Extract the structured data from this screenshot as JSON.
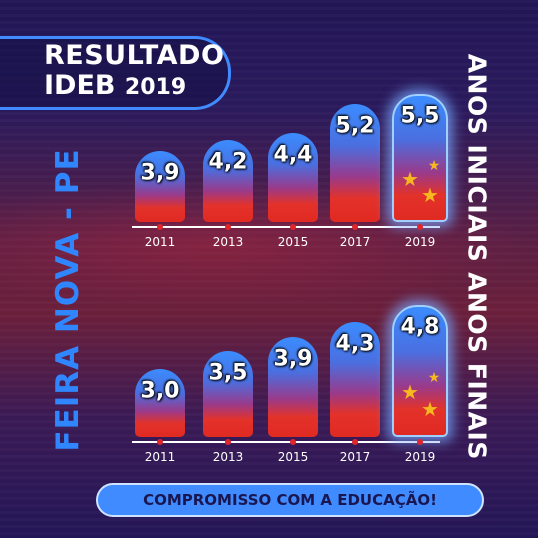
{
  "title": {
    "line1": "RESULTADO",
    "line2": "IDEB",
    "year": "2019"
  },
  "place": "FEIRA NOVA - PE",
  "footer": "COMPROMISSO COM A EDUCAÇÃO!",
  "colors": {
    "accent": "#3f8bff",
    "bar_top": "#3b8cff",
    "bar_bottom": "#e02a22",
    "star": "#f6b81e"
  },
  "chart_data": [
    {
      "type": "bar",
      "title": "ANOS INICIAIS",
      "categories": [
        "2011",
        "2013",
        "2015",
        "2017",
        "2019"
      ],
      "values": [
        3.9,
        4.2,
        4.4,
        5.2,
        5.5
      ],
      "value_labels": [
        "3,9",
        "4,2",
        "4,4",
        "5,2",
        "5,5"
      ],
      "highlight": "2019"
    },
    {
      "type": "bar",
      "title": "ANOS FINAIS",
      "categories": [
        "2011",
        "2013",
        "2015",
        "2017",
        "2019"
      ],
      "values": [
        3.0,
        3.5,
        3.9,
        4.3,
        4.8
      ],
      "value_labels": [
        "3,0",
        "3,5",
        "3,9",
        "4,3",
        "4,8"
      ],
      "highlight": "2019"
    }
  ]
}
